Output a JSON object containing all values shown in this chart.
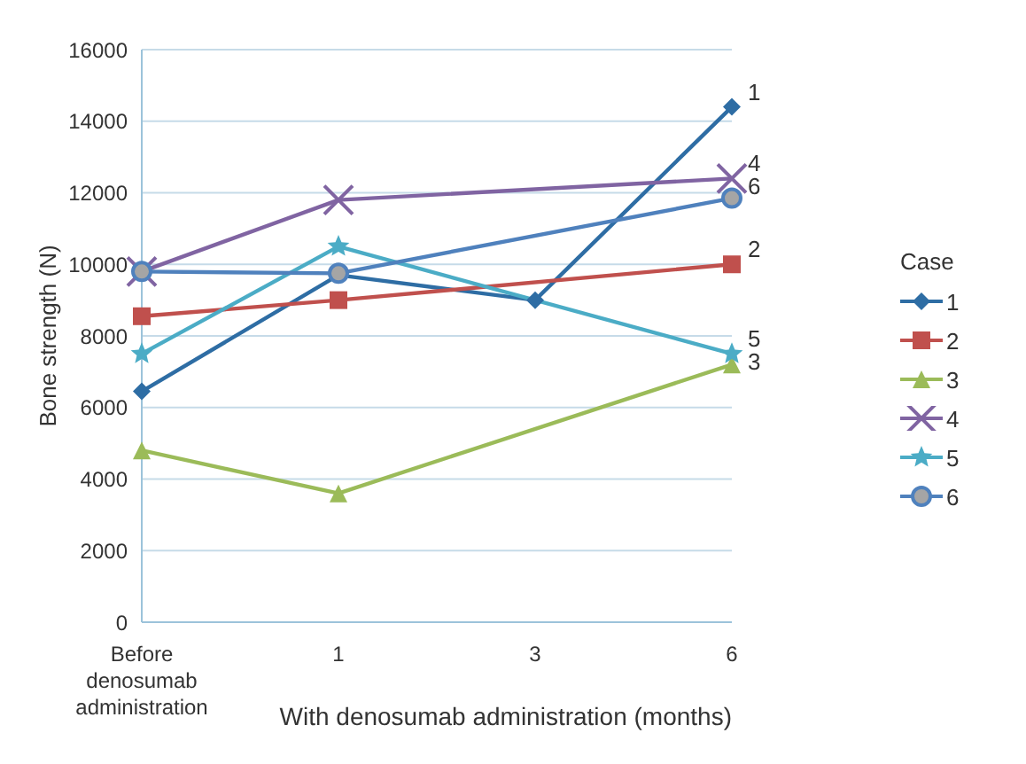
{
  "chart_data": {
    "type": "line",
    "xlabel": "With denosumab administration (months)",
    "ylabel": "Bone strength (N)",
    "legend_title": "Case",
    "categories": [
      "Before denosumab administration",
      "1",
      "3",
      "6"
    ],
    "series": [
      {
        "name": "1",
        "color": "#2e6da4",
        "marker": "diamond",
        "values": [
          6450,
          9700,
          9000,
          14400
        ]
      },
      {
        "name": "2",
        "color": "#c0504d",
        "marker": "square",
        "values": [
          8550,
          9000,
          null,
          10000
        ]
      },
      {
        "name": "3",
        "color": "#9bbb59",
        "marker": "triangle",
        "values": [
          4800,
          3600,
          null,
          7200
        ]
      },
      {
        "name": "4",
        "color": "#8064a2",
        "marker": "cross",
        "values": [
          9800,
          11800,
          null,
          12400
        ]
      },
      {
        "name": "5",
        "color": "#4bacc6",
        "marker": "star",
        "values": [
          7500,
          10500,
          null,
          7500
        ]
      },
      {
        "name": "6",
        "color": "#4f81bd",
        "marker": "circle",
        "values": [
          9800,
          9750,
          null,
          11850
        ]
      }
    ],
    "ylim": [
      0,
      16000
    ],
    "yticks": [
      0,
      2000,
      4000,
      6000,
      8000,
      10000,
      12000,
      14000,
      16000
    ],
    "grid": "y",
    "legend": "right"
  }
}
